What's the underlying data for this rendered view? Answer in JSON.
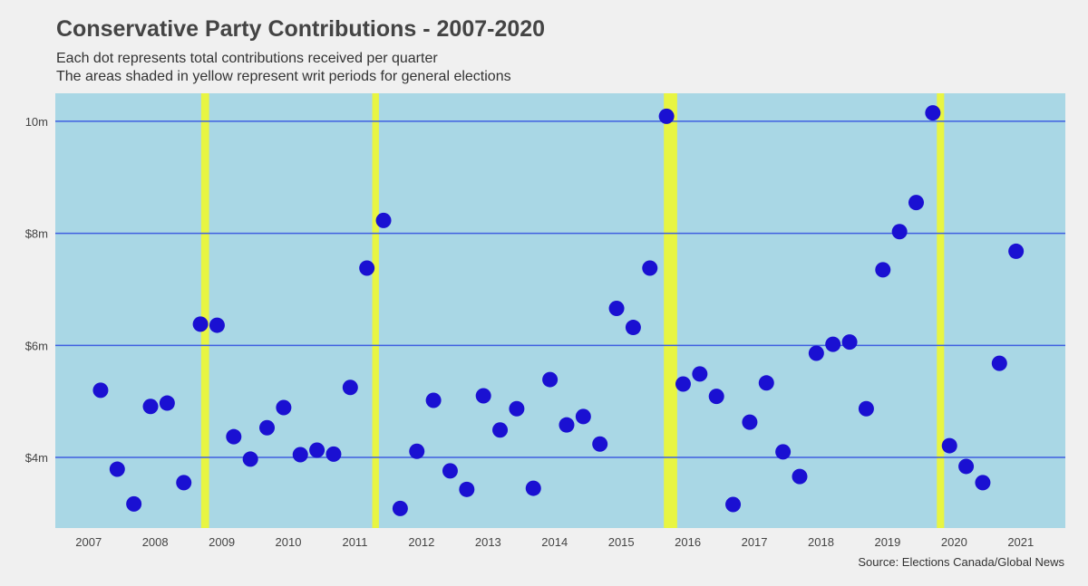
{
  "chart_data": {
    "type": "scatter",
    "title": "Conservative Party Contributions - 2007-2020",
    "subtitle_lines": [
      "Each dot represents total contributions received per quarter",
      "The areas shaded in yellow represent writ periods for general elections"
    ],
    "source": "Source: Elections Canada/Global News",
    "xlabel": "",
    "ylabel": "",
    "xlim": [
      2006.5,
      2021.67
    ],
    "ylim": [
      2.74,
      10.5
    ],
    "x_ticks": [
      2007,
      2008,
      2009,
      2010,
      2011,
      2012,
      2013,
      2014,
      2015,
      2016,
      2017,
      2018,
      2019,
      2020,
      2021
    ],
    "x_tick_labels": [
      "2007",
      "2008",
      "2009",
      "2010",
      "2011",
      "2012",
      "2013",
      "2014",
      "2015",
      "2016",
      "2017",
      "2018",
      "2019",
      "2020",
      "2021"
    ],
    "y_ticks": [
      4,
      6,
      8,
      10
    ],
    "y_tick_labels": [
      "$4m",
      "$6m",
      "$8m",
      "10m"
    ],
    "grid": "horizontal",
    "writ_periods": [
      [
        2008.69,
        2008.81
      ],
      [
        2011.26,
        2011.36
      ],
      [
        2015.64,
        2015.84
      ],
      [
        2019.74,
        2019.85
      ]
    ],
    "x": [
      2007.18,
      2007.43,
      2007.68,
      2007.93,
      2008.18,
      2008.43,
      2008.68,
      2008.93,
      2009.18,
      2009.43,
      2009.68,
      2009.93,
      2010.18,
      2010.43,
      2010.68,
      2010.93,
      2011.18,
      2011.43,
      2011.68,
      2011.93,
      2012.18,
      2012.43,
      2012.68,
      2012.93,
      2013.18,
      2013.43,
      2013.68,
      2013.93,
      2014.18,
      2014.43,
      2014.68,
      2014.93,
      2015.18,
      2015.43,
      2015.68,
      2015.93,
      2016.18,
      2016.43,
      2016.68,
      2016.93,
      2017.18,
      2017.43,
      2017.68,
      2017.93,
      2018.18,
      2018.43,
      2018.68,
      2018.93,
      2019.18,
      2019.43,
      2019.68,
      2019.93,
      2020.18,
      2020.43,
      2020.68,
      2020.93
    ],
    "y": [
      5.2,
      3.79,
      3.17,
      4.91,
      4.97,
      3.55,
      6.38,
      6.36,
      4.37,
      3.97,
      4.53,
      4.89,
      4.05,
      4.13,
      4.06,
      5.25,
      7.38,
      8.23,
      3.09,
      4.11,
      5.02,
      3.76,
      3.43,
      5.1,
      4.49,
      4.87,
      3.45,
      5.39,
      4.58,
      4.73,
      4.24,
      6.66,
      6.32,
      7.38,
      10.09,
      5.31,
      5.49,
      5.09,
      3.16,
      4.63,
      5.33,
      4.1,
      3.66,
      5.86,
      6.02,
      6.06,
      4.87,
      7.35,
      8.03,
      8.55,
      10.15,
      4.21,
      3.84,
      3.55,
      5.68,
      7.68
    ],
    "colors": {
      "background": "#f0f0f0",
      "plot": "#a9d7e5",
      "grid": "#3f5fe0",
      "dot": "#1a10d2",
      "writ": "#e8f542"
    }
  }
}
